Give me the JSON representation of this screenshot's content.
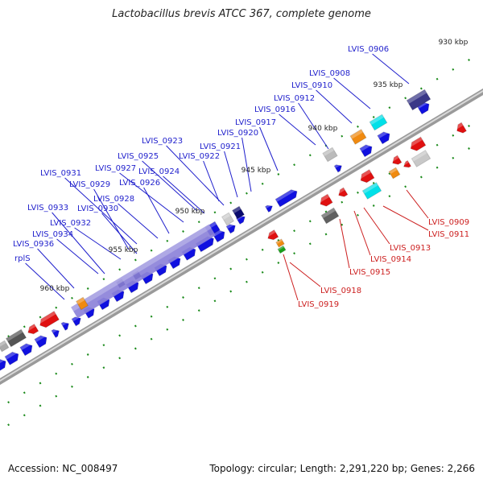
{
  "title": "Lactobacillus brevis ATCC 367, complete genome",
  "footer": {
    "accession": "Accession: NC_008497",
    "summary": "Topology: circular; Length: 2,291,220 bp; Genes: 2,266"
  },
  "colors": {
    "forward_gene": "#1010e0",
    "reverse_gene": "#e01010",
    "forward_label": "#1f1fcc",
    "reverse_label": "#cc1f1f",
    "tick": "#1a8a1a",
    "backbone": "#8c8c8c",
    "cds_lavender": "#8a80d8",
    "highlight_orange": "#f08a10",
    "highlight_cyan": "#00e0e8"
  },
  "scale": [
    "930 kbp",
    "935 kbp",
    "940 kbp",
    "945 kbp",
    "950 kbp",
    "955 kbp",
    "960 kbp"
  ],
  "forward_labels": [
    "LVIS_0906",
    "LVIS_0908",
    "LVIS_0910",
    "LVIS_0912",
    "LVIS_0916",
    "LVIS_0917",
    "LVIS_0920",
    "LVIS_0921",
    "LVIS_0923",
    "LVIS_0922",
    "LVIS_0925",
    "LVIS_0924",
    "LVIS_0927",
    "LVIS_0931",
    "LVIS_0929",
    "LVIS_0926",
    "LVIS_0928",
    "LVIS_0930",
    "LVIS_0933",
    "LVIS_0932",
    "LVIS_0934",
    "LVIS_0936",
    "rplS"
  ],
  "reverse_labels": [
    "LVIS_0909",
    "LVIS_0911",
    "LVIS_0913",
    "LVIS_0914",
    "LVIS_0915",
    "LVIS_0918",
    "LVIS_0919"
  ]
}
